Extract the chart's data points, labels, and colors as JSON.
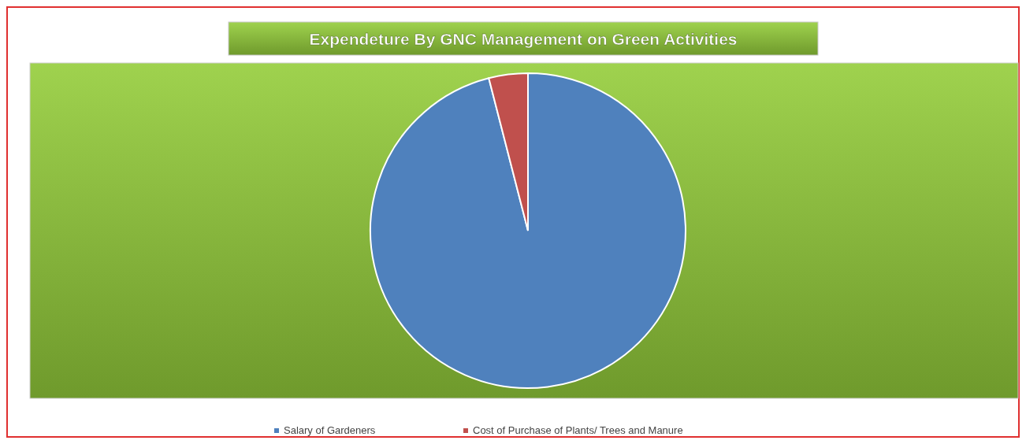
{
  "chart_data": {
    "type": "pie",
    "title": "Expendeture By GNC Management on Green Activities",
    "categories": [
      "Salary of Gardeners",
      "Cost of Purchase of Plants/ Trees and Manure"
    ],
    "values": [
      96,
      4
    ],
    "colors": [
      "#4f81bd",
      "#c0504d"
    ],
    "legend": "bottom"
  }
}
